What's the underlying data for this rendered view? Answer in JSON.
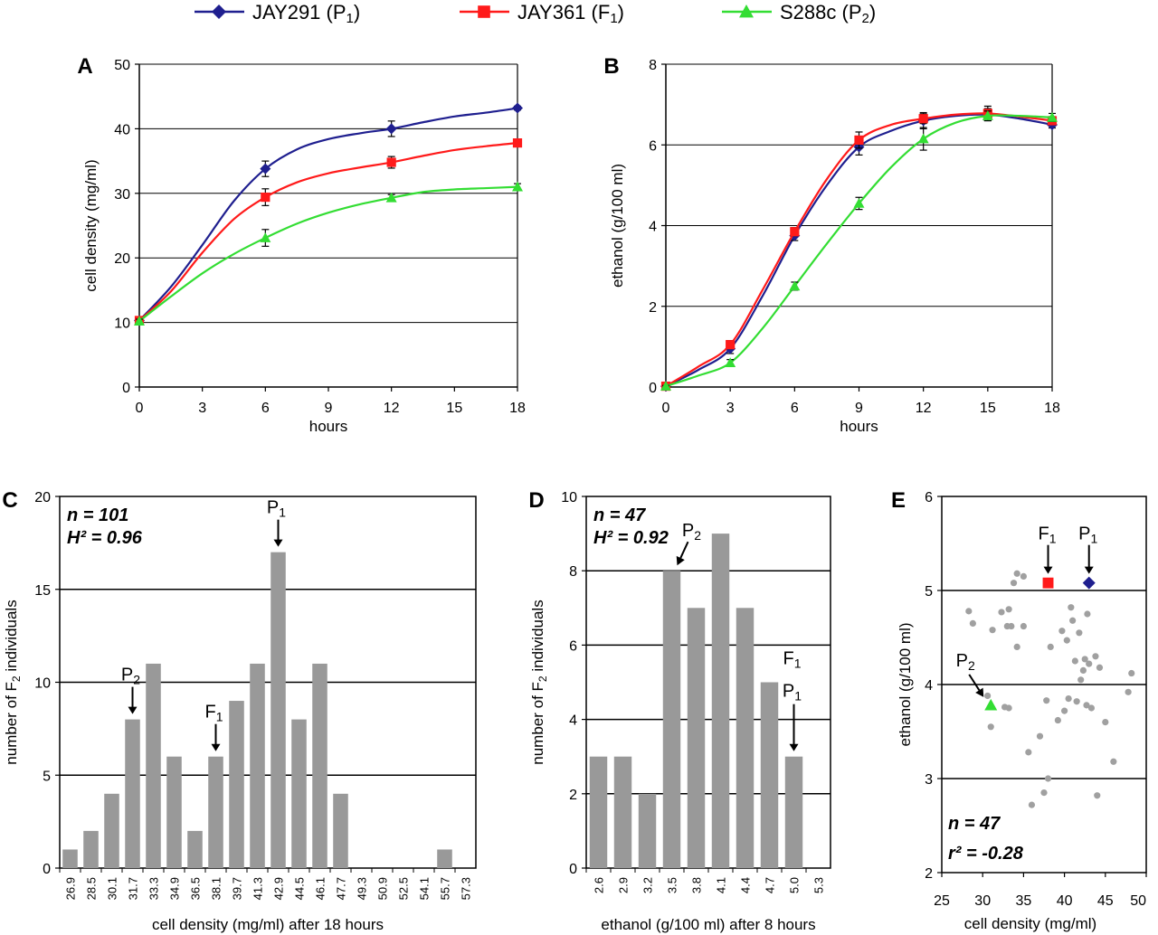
{
  "legend": {
    "entries": [
      {
        "name": "JAY291",
        "sub": "1",
        "label_pre": "JAY291 (P",
        "label_post": ")",
        "color": "#1f1f8f",
        "marker": "diamond"
      },
      {
        "name": "JAY361",
        "sub": "1",
        "label_pre": "JAY361 (F",
        "label_post": ")",
        "color": "#ff1a1a",
        "marker": "square"
      },
      {
        "name": "S288c",
        "sub": "2",
        "label_pre": "S288c (P",
        "label_post": ")",
        "color": "#33dd33",
        "marker": "triangle"
      }
    ]
  },
  "chart_data": [
    {
      "panel": "A",
      "type": "line",
      "xlabel": "hours",
      "ylabel": "cell density (mg/ml)",
      "xlim": [
        0,
        18
      ],
      "ylim": [
        0,
        50
      ],
      "xticks": [
        0,
        3,
        6,
        9,
        12,
        15,
        18
      ],
      "yticks": [
        0,
        10,
        20,
        30,
        40,
        50
      ],
      "grid": true,
      "series": [
        {
          "name": "JAY291 (P1)",
          "color": "#1f1f8f",
          "marker": "diamond",
          "x": [
            0,
            6,
            12,
            18
          ],
          "y": [
            10.3,
            33.8,
            40.0,
            43.2
          ],
          "err": [
            0.3,
            1.2,
            1.2,
            0.3
          ],
          "curve_x": [
            0,
            1.5,
            3,
            4.5,
            6,
            7.5,
            9,
            10.5,
            12,
            13.5,
            15,
            16.5,
            18
          ],
          "curve_y": [
            10.3,
            15.5,
            22.0,
            28.8,
            33.8,
            36.8,
            38.4,
            39.3,
            40.0,
            41.0,
            41.9,
            42.5,
            43.2
          ]
        },
        {
          "name": "JAY361 (F1)",
          "color": "#ff1a1a",
          "marker": "square",
          "x": [
            0,
            6,
            12,
            18
          ],
          "y": [
            10.3,
            29.4,
            34.8,
            37.8
          ],
          "err": [
            0.3,
            1.3,
            0.9,
            0.6
          ],
          "curve_x": [
            0,
            1.5,
            3,
            4.5,
            6,
            7.5,
            9,
            10.5,
            12,
            13.5,
            15,
            16.5,
            18
          ],
          "curve_y": [
            10.3,
            14.8,
            20.8,
            26.0,
            29.4,
            31.7,
            33.1,
            34.0,
            34.8,
            35.8,
            36.7,
            37.3,
            37.8
          ]
        },
        {
          "name": "S288c (P2)",
          "color": "#33dd33",
          "marker": "triangle",
          "x": [
            0,
            6,
            12,
            18
          ],
          "y": [
            10.2,
            23.1,
            29.3,
            31.0
          ],
          "err": [
            0.3,
            1.3,
            0.5,
            0.5
          ],
          "curve_x": [
            0,
            1.5,
            3,
            4.5,
            6,
            7.5,
            9,
            10.5,
            12,
            13.5,
            15,
            16.5,
            18
          ],
          "curve_y": [
            10.2,
            14.0,
            17.6,
            20.6,
            23.1,
            25.3,
            27.0,
            28.3,
            29.3,
            30.2,
            30.6,
            30.8,
            31.0
          ]
        }
      ]
    },
    {
      "panel": "B",
      "type": "line",
      "xlabel": "hours",
      "ylabel": "ethanol (g/100 ml)",
      "xlim": [
        0,
        18
      ],
      "ylim": [
        0,
        8
      ],
      "xticks": [
        0,
        3,
        6,
        9,
        12,
        15,
        18
      ],
      "yticks": [
        0,
        2,
        4,
        6,
        8
      ],
      "grid": true,
      "series": [
        {
          "name": "JAY291 (P1)",
          "color": "#1f1f8f",
          "marker": "diamond",
          "x": [
            0,
            3,
            6,
            9,
            12,
            15,
            18
          ],
          "y": [
            0.02,
            0.95,
            3.75,
            5.95,
            6.6,
            6.75,
            6.5
          ],
          "err": [
            0.02,
            0.12,
            0.12,
            0.2,
            0.2,
            0.15,
            0.08
          ],
          "curve_x": [
            0,
            1.5,
            3,
            4.5,
            6,
            7.5,
            9,
            10.5,
            12,
            13.5,
            15,
            16.5,
            18
          ],
          "curve_y": [
            0.02,
            0.42,
            0.95,
            2.25,
            3.75,
            5.0,
            5.95,
            6.35,
            6.6,
            6.72,
            6.75,
            6.65,
            6.5
          ]
        },
        {
          "name": "JAY361 (F1)",
          "color": "#ff1a1a",
          "marker": "square",
          "x": [
            0,
            3,
            6,
            9,
            12,
            15,
            18
          ],
          "y": [
            0.02,
            1.05,
            3.85,
            6.12,
            6.65,
            6.78,
            6.6
          ],
          "err": [
            0.02,
            0.1,
            0.1,
            0.2,
            0.12,
            0.18,
            0.1
          ],
          "curve_x": [
            0,
            1.5,
            3,
            4.5,
            6,
            7.5,
            9,
            10.5,
            12,
            13.5,
            15,
            16.5,
            18
          ],
          "curve_y": [
            0.02,
            0.5,
            1.05,
            2.4,
            3.85,
            5.15,
            6.12,
            6.5,
            6.65,
            6.75,
            6.78,
            6.7,
            6.6
          ]
        },
        {
          "name": "S288c (P2)",
          "color": "#33dd33",
          "marker": "triangle",
          "x": [
            0,
            3,
            6,
            9,
            12,
            15,
            18
          ],
          "y": [
            0.02,
            0.6,
            2.5,
            4.55,
            6.15,
            6.72,
            6.68
          ],
          "err": [
            0.02,
            0.08,
            0.1,
            0.15,
            0.28,
            0.12,
            0.1
          ],
          "curve_x": [
            0,
            1.5,
            3,
            4.5,
            6,
            7.5,
            9,
            10.5,
            12,
            13.5,
            15,
            16.5,
            18
          ],
          "curve_y": [
            0.02,
            0.28,
            0.6,
            1.45,
            2.5,
            3.55,
            4.55,
            5.45,
            6.15,
            6.55,
            6.72,
            6.72,
            6.68
          ]
        }
      ]
    },
    {
      "panel": "C",
      "type": "bar",
      "xlabel": "cell density (mg/ml) after 18 hours",
      "ylabel_pre": "number of F",
      "ylabel_sub": "2",
      "ylabel_post": " individuals",
      "ylim": [
        0,
        20
      ],
      "yticks": [
        0,
        5,
        10,
        15,
        20
      ],
      "categories": [
        "26.9",
        "28.5",
        "30.1",
        "31.7",
        "33.3",
        "34.9",
        "36.5",
        "38.1",
        "39.7",
        "41.3",
        "42.9",
        "44.5",
        "46.1",
        "47.7",
        "49.3",
        "50.9",
        "52.5",
        "54.1",
        "55.7",
        "57.3"
      ],
      "values": [
        1,
        2,
        4,
        8,
        11,
        6,
        2,
        6,
        9,
        11,
        17,
        8,
        11,
        4,
        0,
        0,
        0,
        0,
        1,
        0
      ],
      "bar_color": "#999999",
      "stats": [
        "n = 101",
        "H² = 0.96"
      ],
      "annotations": [
        {
          "label": "P",
          "sub": "1",
          "bar": 10
        },
        {
          "label": "P",
          "sub": "2",
          "bar": 3
        },
        {
          "label": "F",
          "sub": "1",
          "bar": 7
        }
      ]
    },
    {
      "panel": "D",
      "type": "bar",
      "xlabel": "ethanol (g/100 ml) after 8 hours",
      "ylabel_pre": "number of F",
      "ylabel_sub": "2",
      "ylabel_post": " individuals",
      "ylim": [
        0,
        10
      ],
      "yticks": [
        0,
        2,
        4,
        6,
        8,
        10
      ],
      "categories": [
        "2.6",
        "2.9",
        "3.2",
        "3.5",
        "3.8",
        "4.1",
        "4.4",
        "4.7",
        "5.0",
        "5.3"
      ],
      "values": [
        3,
        3,
        2,
        8,
        7,
        9,
        7,
        5,
        3,
        0
      ],
      "bar_color": "#999999",
      "stats": [
        "n = 47",
        "H² = 0.92"
      ],
      "annotations": [
        {
          "label": "P",
          "sub": "2",
          "bar": 3
        },
        {
          "label": "F",
          "sub": "1",
          "bar": 8
        },
        {
          "label": "P",
          "sub": "1",
          "bar": 8
        }
      ]
    },
    {
      "panel": "E",
      "type": "scatter",
      "xlabel": "cell density (mg/ml)",
      "ylabel": "ethanol (g/100 ml)",
      "xlim": [
        25,
        50
      ],
      "ylim": [
        2,
        6
      ],
      "xticks": [
        25,
        30,
        35,
        40,
        45,
        50
      ],
      "yticks": [
        2,
        3,
        4,
        5,
        6
      ],
      "stats": [
        "n = 47",
        "r² = -0.28"
      ],
      "points": [
        [
          28.3,
          4.78
        ],
        [
          28.8,
          4.65
        ],
        [
          30.6,
          3.88
        ],
        [
          31.0,
          3.55
        ],
        [
          31.2,
          4.58
        ],
        [
          32.3,
          4.77
        ],
        [
          32.7,
          3.76
        ],
        [
          33.0,
          4.62
        ],
        [
          33.2,
          4.8
        ],
        [
          33.5,
          4.62
        ],
        [
          33.2,
          3.75
        ],
        [
          33.8,
          5.08
        ],
        [
          34.2,
          4.4
        ],
        [
          34.2,
          5.18
        ],
        [
          35.0,
          5.15
        ],
        [
          35.0,
          4.62
        ],
        [
          35.6,
          3.28
        ],
        [
          36.0,
          2.72
        ],
        [
          37.0,
          3.45
        ],
        [
          37.5,
          2.85
        ],
        [
          37.8,
          3.83
        ],
        [
          38.0,
          3.0
        ],
        [
          38.3,
          4.4
        ],
        [
          39.2,
          3.62
        ],
        [
          39.7,
          4.57
        ],
        [
          40.0,
          3.72
        ],
        [
          40.3,
          4.47
        ],
        [
          40.5,
          3.85
        ],
        [
          40.8,
          4.82
        ],
        [
          41.0,
          4.68
        ],
        [
          41.3,
          4.25
        ],
        [
          41.5,
          3.82
        ],
        [
          41.8,
          4.55
        ],
        [
          42.0,
          4.05
        ],
        [
          42.3,
          4.15
        ],
        [
          42.5,
          4.27
        ],
        [
          42.7,
          3.78
        ],
        [
          42.8,
          4.75
        ],
        [
          43.0,
          4.22
        ],
        [
          43.3,
          3.75
        ],
        [
          43.8,
          4.3
        ],
        [
          44.0,
          2.82
        ],
        [
          44.3,
          4.18
        ],
        [
          45.0,
          3.6
        ],
        [
          46.0,
          3.18
        ],
        [
          47.8,
          3.92
        ],
        [
          48.2,
          4.12
        ]
      ],
      "highlight": [
        {
          "name": "F1",
          "label": "F",
          "sub": "1",
          "x": 38.0,
          "y": 5.08,
          "color": "#ff1a1a",
          "marker": "square"
        },
        {
          "name": "P1",
          "label": "P",
          "sub": "1",
          "x": 43.0,
          "y": 5.08,
          "color": "#1f1f8f",
          "marker": "diamond"
        },
        {
          "name": "P2",
          "label": "P",
          "sub": "2",
          "x": 31.0,
          "y": 3.78,
          "color": "#33dd33",
          "marker": "triangle"
        }
      ],
      "point_color": "#a0a0a0"
    }
  ]
}
